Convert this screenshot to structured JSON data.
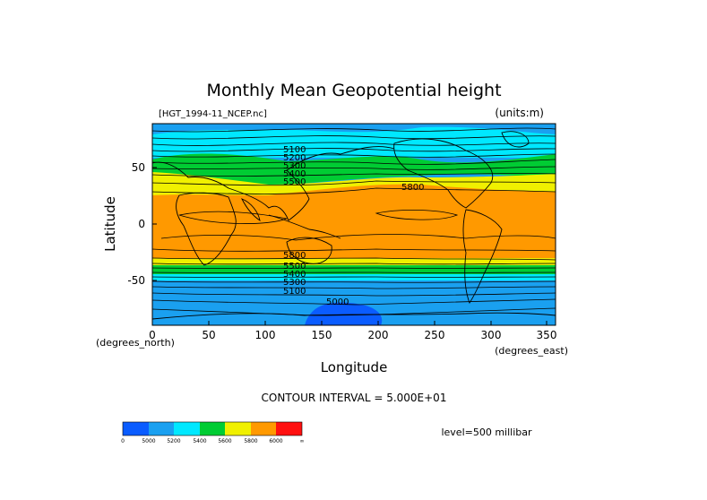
{
  "title": "Monthly Mean Geopotential height",
  "file_label": "[HGT_1994-11_NCEP.nc]",
  "units_label": "(units:m)",
  "x_axis": {
    "label": "Longitude",
    "unit_label": "(degrees_east)",
    "ticks": [
      "0",
      "50",
      "100",
      "150",
      "200",
      "250",
      "300",
      "350"
    ]
  },
  "y_axis": {
    "label": "Latitude",
    "unit_label": "(degrees_north)",
    "ticks": [
      "50",
      "0",
      "-50"
    ]
  },
  "contour_interval": "CONTOUR INTERVAL = 5.000E+01",
  "level": "level=500 millibar",
  "contour_labels": [
    "5100",
    "5200",
    "5300",
    "5400",
    "5500",
    "5800",
    "5800",
    "5500",
    "5400",
    "5300",
    "5100",
    "5000"
  ],
  "legend": {
    "colors": [
      "#0a5cff",
      "#1aa0f0",
      "#00e8ff",
      "#00cc33",
      "#f0f000",
      "#ff9900",
      "#ff1010"
    ],
    "labels": [
      "0",
      "5000",
      "5200",
      "5400",
      "5600",
      "5800",
      "6000",
      "∞"
    ]
  },
  "colors": {
    "deep_blue": "#0a5cff",
    "blue": "#1aa0f0",
    "cyan": "#00e8ff",
    "green": "#00cc33",
    "yellow": "#f0f000",
    "orange": "#ff9900",
    "red": "#ff1010"
  }
}
